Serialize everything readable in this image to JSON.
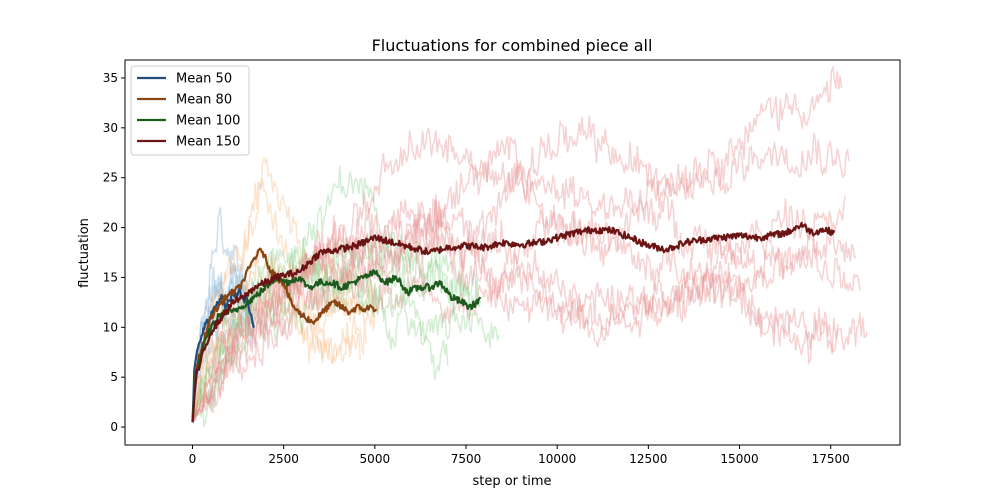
{
  "chart_data": {
    "type": "line",
    "title": "Fluctuations for combined piece all",
    "xlabel": "step or time",
    "ylabel": "fluctuation",
    "xlim": [
      -1850,
      19400
    ],
    "ylim": [
      -1.8,
      36.8
    ],
    "xticks": [
      0,
      2500,
      5000,
      7500,
      10000,
      12500,
      15000,
      17500
    ],
    "yticks": [
      0,
      5,
      10,
      15,
      20,
      25,
      30,
      35
    ],
    "grid": false,
    "legend_position": "top-left",
    "legend": [
      {
        "label": "Mean 50",
        "color": "#1f4e79"
      },
      {
        "label": "Mean 80",
        "color": "#8b4513"
      },
      {
        "label": "Mean 100",
        "color": "#1e5a1e"
      },
      {
        "label": "Mean 150",
        "color": "#6b1414"
      }
    ],
    "series": [
      {
        "name": "Mean 50",
        "color": "#1f4e79",
        "x": [
          0,
          50,
          100,
          200,
          300,
          400,
          500,
          600,
          700,
          800,
          900,
          1000,
          1100,
          1200,
          1300,
          1400,
          1500,
          1600,
          1700
        ],
        "values": [
          0.5,
          5.5,
          7,
          8.5,
          10,
          10.5,
          11,
          12,
          12.5,
          13,
          12,
          12.5,
          13.5,
          13,
          14,
          12.5,
          13,
          11,
          10
        ]
      },
      {
        "name": "Mean 80",
        "color": "#8b4513",
        "x": [
          0,
          100,
          300,
          500,
          700,
          900,
          1100,
          1300,
          1500,
          1700,
          1900,
          2100,
          2300,
          2500,
          2700,
          2900,
          3100,
          3300,
          3500,
          3700,
          3900,
          4100,
          4300,
          4500,
          4700,
          4900,
          5050
        ],
        "values": [
          0.5,
          6,
          8.5,
          11,
          12,
          13,
          13.5,
          14,
          15.5,
          17,
          17.8,
          16,
          15,
          14.5,
          12.5,
          11.5,
          11,
          10.5,
          11.2,
          12,
          12.5,
          12,
          11.5,
          12,
          11.8,
          12,
          11.8
        ]
      },
      {
        "name": "Mean 100",
        "color": "#1e5a1e",
        "x": [
          0,
          100,
          300,
          500,
          700,
          900,
          1100,
          1300,
          1500,
          1700,
          2000,
          2300,
          2600,
          2900,
          3200,
          3500,
          3800,
          4100,
          4400,
          4700,
          5000,
          5300,
          5600,
          5900,
          6200,
          6500,
          6800,
          7100,
          7400,
          7600,
          7800,
          7900
        ],
        "values": [
          0.5,
          5.5,
          8,
          10,
          11,
          11.5,
          11.5,
          12,
          12.5,
          13,
          14,
          15,
          14.5,
          15,
          14,
          14.5,
          14.5,
          14,
          14.5,
          15,
          15.5,
          14.5,
          15,
          13.5,
          14,
          14,
          14.5,
          13,
          12.5,
          12,
          12.5,
          13
        ]
      },
      {
        "name": "Mean 150",
        "color": "#6b1414",
        "x": [
          0,
          100,
          300,
          500,
          800,
          1100,
          1400,
          1700,
          2000,
          2300,
          2600,
          2900,
          3200,
          3500,
          4000,
          4500,
          5000,
          5500,
          6000,
          6500,
          7000,
          7500,
          8000,
          8500,
          9000,
          9500,
          10000,
          10500,
          11000,
          11500,
          12000,
          12500,
          13000,
          13500,
          14000,
          14500,
          15000,
          15500,
          16000,
          16300,
          16700,
          17000,
          17300,
          17600
        ],
        "values": [
          0.5,
          5,
          7.5,
          9.5,
          11,
          12.5,
          13,
          14,
          14.5,
          15,
          15.3,
          15.5,
          16.5,
          17.5,
          17.8,
          18.2,
          19,
          18.5,
          18,
          17.5,
          18,
          18.2,
          18,
          18.5,
          18.3,
          18.5,
          19,
          19.5,
          19.8,
          19.7,
          19,
          18.2,
          17.8,
          18.5,
          18.8,
          19,
          19.2,
          19,
          19.3,
          19.5,
          20.3,
          19.5,
          19.8,
          19.5
        ]
      }
    ],
    "background_runs": [
      {
        "group": "Mean 50",
        "color": "#7eaed6",
        "opacity": 0.38,
        "x_end": 1700,
        "base": [
          0.5,
          8,
          11,
          12,
          13,
          12,
          13,
          12,
          11,
          10
        ],
        "noise": 4.5
      },
      {
        "group": "Mean 50",
        "color": "#7eaed6",
        "opacity": 0.38,
        "x_end": 1650,
        "base": [
          0.5,
          7,
          10,
          13,
          15,
          14,
          12,
          13,
          11,
          10
        ],
        "noise": 4.5
      },
      {
        "group": "Mean 50",
        "color": "#7eaed6",
        "opacity": 0.38,
        "x_end": 1600,
        "base": [
          0.5,
          6,
          9,
          11,
          10,
          12,
          13,
          14,
          12,
          11
        ],
        "noise": 4.5
      },
      {
        "group": "Mean 50",
        "color": "#7eaed6",
        "opacity": 0.38,
        "x_end": 1750,
        "base": [
          0.5,
          9,
          14,
          16,
          14,
          13,
          15,
          14,
          12,
          11
        ],
        "noise": 5
      },
      {
        "group": "Mean 50",
        "color": "#7eaed6",
        "opacity": 0.38,
        "x_end": 1550,
        "base": [
          0.5,
          5,
          8,
          9,
          10,
          11,
          10,
          9,
          10,
          9
        ],
        "noise": 4
      },
      {
        "group": "Mean 50",
        "color": "#7eaed6",
        "opacity": 0.38,
        "x_end": 1700,
        "base": [
          0.5,
          7,
          12,
          17,
          19,
          16,
          14,
          13,
          12,
          11
        ],
        "noise": 5
      },
      {
        "group": "Mean 80",
        "color": "#f5b072",
        "opacity": 0.33,
        "x_end": 5000,
        "base": [
          0.5,
          9,
          13,
          16,
          18,
          14,
          11,
          10,
          11,
          12,
          11
        ],
        "noise": 5
      },
      {
        "group": "Mean 80",
        "color": "#f5b072",
        "opacity": 0.33,
        "x_end": 4800,
        "base": [
          0.5,
          10,
          15,
          20,
          24,
          18,
          13,
          9,
          8,
          9,
          8
        ],
        "noise": 5
      },
      {
        "group": "Mean 80",
        "color": "#f5b072",
        "opacity": 0.33,
        "x_end": 5100,
        "base": [
          0.5,
          8,
          12,
          14,
          16,
          15,
          14,
          13,
          14,
          13,
          12
        ],
        "noise": 5
      },
      {
        "group": "Mean 80",
        "color": "#f5b072",
        "opacity": 0.33,
        "x_end": 4600,
        "base": [
          0.5,
          7,
          10,
          12,
          13,
          12,
          11,
          10,
          9,
          8,
          7
        ],
        "noise": 4.5
      },
      {
        "group": "Mean 80",
        "color": "#f5b072",
        "opacity": 0.33,
        "x_end": 5000,
        "base": [
          0.5,
          11,
          16,
          21,
          26,
          22,
          17,
          13,
          12,
          14,
          15
        ],
        "noise": 5
      },
      {
        "group": "Mean 100",
        "color": "#7ccc7c",
        "opacity": 0.33,
        "x_end": 7900,
        "base": [
          0.5,
          8,
          11,
          14,
          16,
          18,
          17,
          15,
          14,
          13,
          12
        ],
        "noise": 5
      },
      {
        "group": "Mean 100",
        "color": "#7ccc7c",
        "opacity": 0.33,
        "x_end": 8400,
        "base": [
          0.5,
          7,
          10,
          12,
          14,
          13,
          12,
          11,
          10,
          9,
          8.5
        ],
        "noise": 5
      },
      {
        "group": "Mean 100",
        "color": "#7ccc7c",
        "opacity": 0.33,
        "x_end": 7600,
        "base": [
          0.5,
          9,
          13,
          17,
          19,
          22,
          24,
          21,
          18,
          16,
          15
        ],
        "noise": 5
      },
      {
        "group": "Mean 100",
        "color": "#7ccc7c",
        "opacity": 0.33,
        "x_end": 7000,
        "base": [
          0.5,
          6,
          9,
          11,
          12,
          13,
          14,
          12,
          10,
          9,
          7
        ],
        "noise": 5
      },
      {
        "group": "Mean 100",
        "color": "#7ccc7c",
        "opacity": 0.33,
        "x_end": 7800,
        "base": [
          0.5,
          8,
          12,
          15,
          17,
          16,
          18,
          19,
          17,
          16,
          14
        ],
        "noise": 5
      },
      {
        "group": "Mean 150",
        "color": "#e58c8c",
        "opacity": 0.38,
        "x_end": 18500,
        "base": [
          0.5,
          10,
          14,
          17,
          22,
          26,
          28,
          27,
          24,
          21,
          18,
          16,
          14,
          12,
          11,
          10,
          10
        ],
        "noise": 5
      },
      {
        "group": "Mean 150",
        "color": "#e58c8c",
        "opacity": 0.38,
        "x_end": 17800,
        "base": [
          0.5,
          9,
          13,
          16,
          18,
          20,
          22,
          25,
          27,
          29,
          27,
          25,
          27,
          29,
          31,
          33,
          34
        ],
        "noise": 5
      },
      {
        "group": "Mean 150",
        "color": "#e58c8c",
        "opacity": 0.38,
        "x_end": 18000,
        "base": [
          0.5,
          8,
          12,
          15,
          17,
          19,
          21,
          22,
          23,
          25,
          23,
          22,
          24,
          25,
          28,
          30,
          28
        ],
        "noise": 5
      },
      {
        "group": "Mean 150",
        "color": "#e58c8c",
        "opacity": 0.38,
        "x_end": 18200,
        "base": [
          0.5,
          7,
          11,
          14,
          16,
          18,
          17,
          15,
          13,
          12,
          11,
          12,
          13,
          14,
          15,
          17,
          18
        ],
        "noise": 5
      },
      {
        "group": "Mean 150",
        "color": "#e58c8c",
        "opacity": 0.38,
        "x_end": 17700,
        "base": [
          0.5,
          8,
          12,
          15,
          17,
          18,
          19,
          18,
          16,
          14,
          13,
          12,
          13,
          14,
          12,
          10,
          9
        ],
        "noise": 5
      },
      {
        "group": "Mean 150",
        "color": "#e58c8c",
        "opacity": 0.38,
        "x_end": 18300,
        "base": [
          0.5,
          9,
          14,
          17,
          19,
          21,
          20,
          19,
          18,
          19,
          20,
          21,
          20,
          19,
          17,
          15,
          14
        ],
        "noise": 5
      },
      {
        "group": "Mean 150",
        "color": "#e58c8c",
        "opacity": 0.38,
        "x_end": 17900,
        "base": [
          0.5,
          6,
          10,
          12,
          14,
          15,
          14,
          13,
          12,
          11,
          12,
          13,
          14,
          16,
          19,
          22,
          23
        ],
        "noise": 5
      }
    ]
  }
}
